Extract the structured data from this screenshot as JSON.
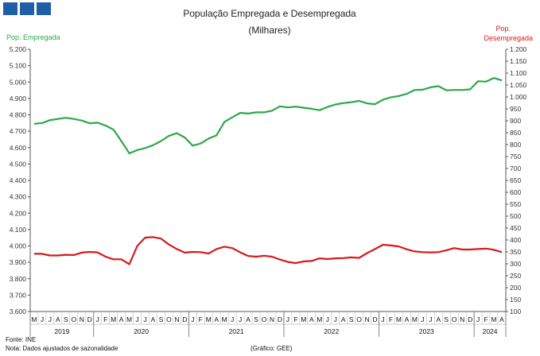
{
  "chart_data": {
    "type": "line",
    "title": "População Empregada e Desempregada",
    "subtitle": "(Milhares)",
    "left_axis_label": "Pop. Empregada",
    "right_axis_label_1": "Pop.",
    "right_axis_label_2": "Desempregada",
    "left_ylim": [
      3.6,
      5.2
    ],
    "left_ticks": [
      "3.600",
      "3.700",
      "3.800",
      "3.900",
      "4.000",
      "4.100",
      "4.200",
      "4.300",
      "4.400",
      "4.500",
      "4.600",
      "4.700",
      "4.800",
      "4.900",
      "5.000",
      "5.100",
      "5.200"
    ],
    "right_ylim": [
      100,
      1200
    ],
    "right_ticks": [
      "100",
      "150",
      "200",
      "250",
      "300",
      "350",
      "400",
      "450",
      "500",
      "550",
      "600",
      "650",
      "700",
      "750",
      "800",
      "850",
      "900",
      "950",
      "1.000",
      "1.050",
      "1.100",
      "1.150",
      "1.200"
    ],
    "x_months": [
      "M",
      "J",
      "J",
      "A",
      "S",
      "O",
      "N",
      "D",
      "J",
      "F",
      "M",
      "A",
      "M",
      "J",
      "J",
      "A",
      "S",
      "O",
      "N",
      "D",
      "J",
      "F",
      "M",
      "A",
      "M",
      "J",
      "J",
      "A",
      "S",
      "O",
      "N",
      "D",
      "J",
      "F",
      "M",
      "A",
      "M",
      "J",
      "J",
      "A",
      "S",
      "O",
      "N",
      "D",
      "J",
      "F",
      "M",
      "A",
      "M",
      "J",
      "J",
      "A",
      "S",
      "O",
      "N",
      "D",
      "J",
      "F",
      "M",
      "A"
    ],
    "x_years": [
      {
        "label": "2019",
        "start": 0,
        "end": 7
      },
      {
        "label": "2020",
        "start": 8,
        "end": 19
      },
      {
        "label": "2021",
        "start": 20,
        "end": 31
      },
      {
        "label": "2022",
        "start": 32,
        "end": 43
      },
      {
        "label": "2023",
        "start": 44,
        "end": 55
      },
      {
        "label": "2024",
        "start": 56,
        "end": 59
      }
    ],
    "series": [
      {
        "name": "Pop. Empregada",
        "axis": "left",
        "color": "#2ca84a",
        "values": [
          4.745,
          4.75,
          4.768,
          4.775,
          4.782,
          4.775,
          4.765,
          4.748,
          4.752,
          4.735,
          4.71,
          4.64,
          4.565,
          4.585,
          4.597,
          4.615,
          4.64,
          4.672,
          4.688,
          4.662,
          4.612,
          4.625,
          4.655,
          4.675,
          4.757,
          4.785,
          4.812,
          4.808,
          4.815,
          4.815,
          4.825,
          4.852,
          4.845,
          4.85,
          4.843,
          4.837,
          4.828,
          4.848,
          4.863,
          4.872,
          4.877,
          4.885,
          4.87,
          4.865,
          4.892,
          4.907,
          4.915,
          4.928,
          4.952,
          4.953,
          4.968,
          4.975,
          4.95,
          4.952,
          4.952,
          4.955,
          5.005,
          5.002,
          5.025,
          5.01
        ]
      },
      {
        "name": "Pop. Desempregada",
        "axis": "right",
        "color": "#d7191c",
        "values": [
          342,
          342,
          335,
          335,
          338,
          337,
          347,
          350,
          348,
          330,
          319,
          319,
          298,
          375,
          410,
          412,
          406,
          381,
          362,
          347,
          350,
          349,
          343,
          362,
          372,
          366,
          348,
          333,
          330,
          334,
          330,
          318,
          308,
          303,
          310,
          312,
          323,
          320,
          323,
          324,
          327,
          325,
          345,
          362,
          380,
          377,
          373,
          361,
          352,
          349,
          348,
          349,
          357,
          366,
          360,
          360,
          362,
          364,
          359,
          349
        ]
      }
    ]
  },
  "footer": {
    "fonte": "Fonte: INE",
    "nota": "Nota: Dados ajustados de sazonalidade",
    "grafico": "(Gráfico: GEE)"
  }
}
